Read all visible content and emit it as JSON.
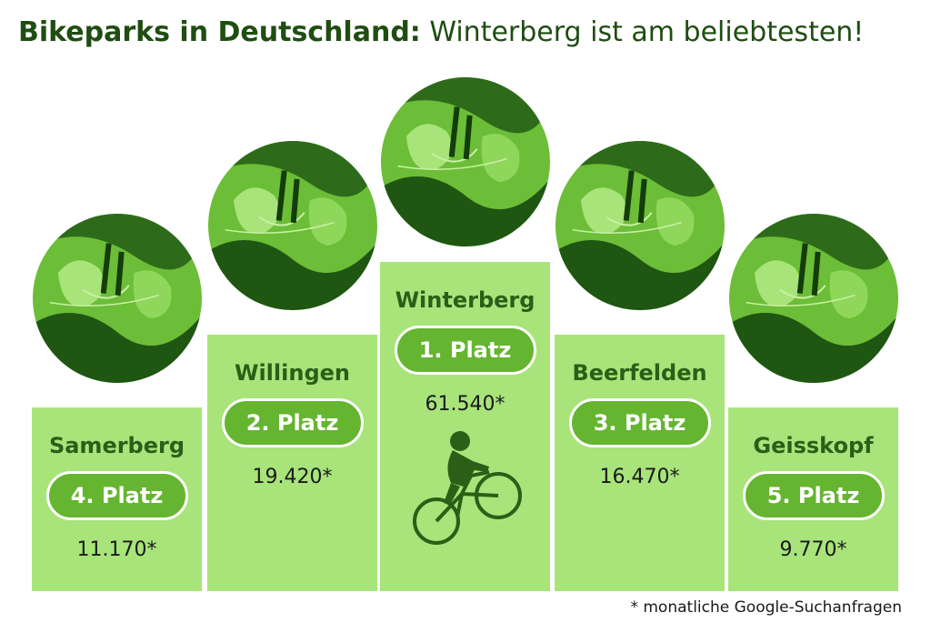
{
  "title": {
    "bold": "Bikeparks in Deutschland:",
    "light": "Winterberg ist am beliebtesten!"
  },
  "footnote": "* monatliche Google-Suchanfragen",
  "colors": {
    "column": "#a8e47a",
    "pill": "#66b531",
    "dark_green": "#2b5e17",
    "title": "#1f4d12"
  },
  "chart_data": {
    "type": "bar",
    "title": "Bikeparks in Deutschland: Winterberg ist am beliebtesten!",
    "categories": [
      "Samerberg",
      "Willingen",
      "Winterberg",
      "Beerfelden",
      "Geisskopf"
    ],
    "values": [
      11170,
      19420,
      61540,
      16470,
      9770
    ],
    "ranks": [
      "4. Platz",
      "2. Platz",
      "1. Platz",
      "3. Platz",
      "5. Platz"
    ],
    "value_labels": [
      "11.170*",
      "19.420*",
      "61.540*",
      "16.470*",
      "9.770*"
    ],
    "icons": [
      "aerial-terrain-icon",
      "aerial-terrain-icon",
      "aerial-terrain-icon",
      "aerial-terrain-icon",
      "aerial-terrain-icon"
    ],
    "winner_icon": "mountain-biker-icon"
  }
}
